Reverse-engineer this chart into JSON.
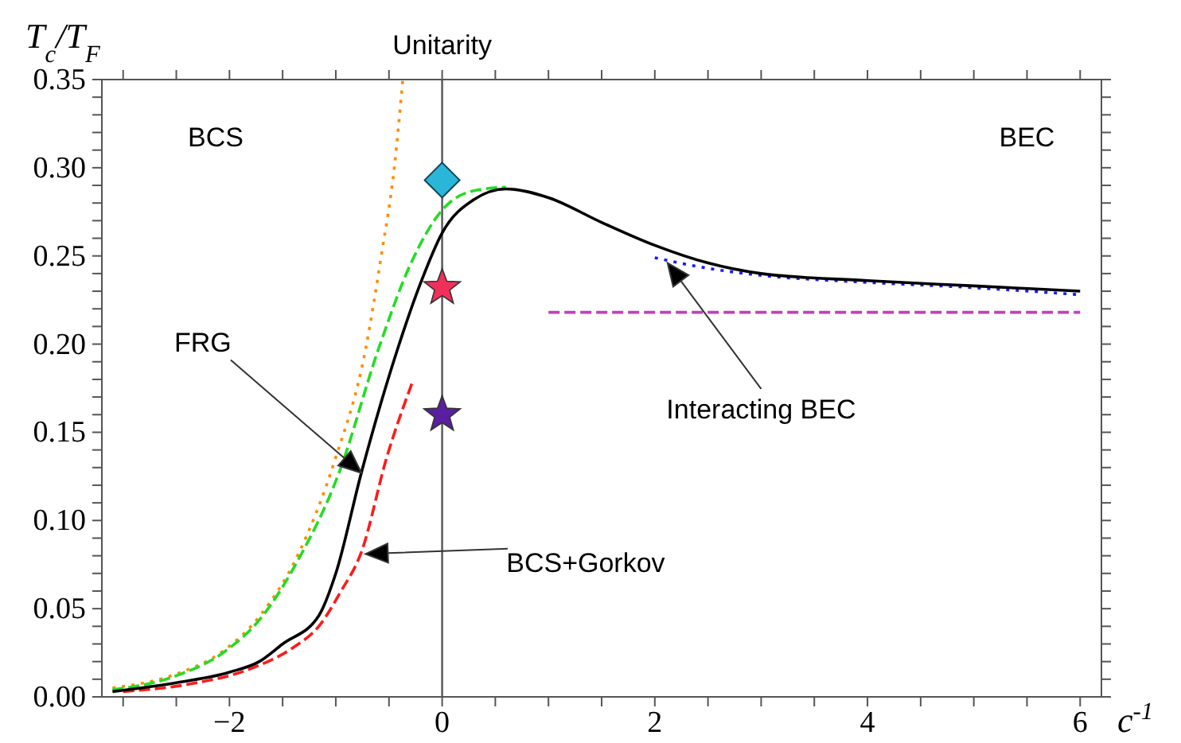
{
  "chart_data": {
    "type": "line",
    "ylabel": "T$_{c}$/T$_{F}$",
    "xlabel": "c$^{-1}$",
    "xlim": [
      -3.2,
      6.2
    ],
    "xticks": [
      {
        "value": -3,
        "label": null
      },
      {
        "value": -2.5,
        "label": null
      },
      {
        "value": -2,
        "label": "−2"
      },
      {
        "value": -1.5,
        "label": null
      },
      {
        "value": -1,
        "label": null
      },
      {
        "value": -0.5,
        "label": null
      },
      0,
      {
        "value": 0.5,
        "label": null
      },
      {
        "value": 1,
        "label": null
      },
      {
        "value": 1.5,
        "label": null
      },
      2,
      {
        "value": 2.5,
        "label": null
      },
      {
        "value": 3,
        "label": null
      },
      {
        "value": 3.5,
        "label": null
      },
      4,
      {
        "value": 4.5,
        "label": null
      },
      {
        "value": 5,
        "label": null
      },
      {
        "value": 5.5,
        "label": null
      },
      6
    ],
    "ylim": [
      0,
      0.35
    ],
    "yticks": [
      {
        "value": 0,
        "label": "0.00"
      },
      {
        "value": 0.01,
        "label": null
      },
      {
        "value": 0.02,
        "label": null
      },
      {
        "value": 0.03,
        "label": null
      },
      {
        "value": 0.04,
        "label": null
      },
      {
        "value": 0.05,
        "label": "0.05"
      },
      {
        "value": 0.06,
        "label": null
      },
      {
        "value": 0.07,
        "label": null
      },
      {
        "value": 0.08,
        "label": null
      },
      {
        "value": 0.09,
        "label": null
      },
      {
        "value": 0.1,
        "label": "0.10"
      },
      {
        "value": 0.11,
        "label": null
      },
      {
        "value": 0.12,
        "label": null
      },
      {
        "value": 0.13,
        "label": null
      },
      {
        "value": 0.14,
        "label": null
      },
      {
        "value": 0.15,
        "label": "0.15"
      },
      {
        "value": 0.16,
        "label": null
      },
      {
        "value": 0.17,
        "label": null
      },
      {
        "value": 0.18,
        "label": null
      },
      {
        "value": 0.19,
        "label": null
      },
      {
        "value": 0.2,
        "label": "0.20"
      },
      {
        "value": 0.21,
        "label": null
      },
      {
        "value": 0.22,
        "label": null
      },
      {
        "value": 0.23,
        "label": null
      },
      {
        "value": 0.24,
        "label": null
      },
      {
        "value": 0.25,
        "label": "0.25"
      },
      {
        "value": 0.26,
        "label": null
      },
      {
        "value": 0.27,
        "label": null
      },
      {
        "value": 0.28,
        "label": null
      },
      {
        "value": 0.29,
        "label": null
      },
      {
        "value": 0.3,
        "label": "0.30"
      },
      {
        "value": 0.31,
        "label": null
      },
      {
        "value": 0.32,
        "label": null
      },
      {
        "value": 0.33,
        "label": null
      },
      {
        "value": 0.34,
        "label": null
      },
      {
        "value": 0.35,
        "label": "0.35"
      }
    ],
    "grid": false,
    "legend": false,
    "marker": "none",
    "series": [
      {
        "color": "#ff8c00",
        "line_style": "dotted",
        "x": [
          -3.1,
          -2.5,
          -2.06,
          -1.7,
          -1.36,
          -1.01,
          -0.72,
          -0.57,
          -0.45,
          -0.37
        ],
        "values": [
          0.005,
          0.013,
          0.026,
          0.047,
          0.08,
          0.134,
          0.197,
          0.251,
          0.3,
          0.35
        ]
      },
      {
        "color": "#22dd22",
        "line_style": "dashed",
        "x": [
          -3.1,
          -2.5,
          -2.06,
          -1.7,
          -1.36,
          -0.97,
          -0.6,
          -0.3,
          0,
          0.3,
          0.6
        ],
        "values": [
          0.004,
          0.012,
          0.025,
          0.045,
          0.077,
          0.127,
          0.197,
          0.245,
          0.276,
          0.287,
          0.289
        ]
      },
      {
        "color": "#ff1a1a",
        "line_style": "dashed",
        "x": [
          -3,
          -2.4,
          -1.8,
          -1.4,
          -1.16,
          -0.95,
          -0.76,
          -0.52,
          -0.27
        ],
        "values": [
          0.003,
          0.007,
          0.016,
          0.028,
          0.04,
          0.06,
          0.082,
          0.136,
          0.18
        ]
      },
      {
        "color": "#1a1aff",
        "line_style": "dotted",
        "x": [
          2,
          2.5,
          3,
          4,
          5,
          6
        ],
        "values": [
          0.249,
          0.243,
          0.239,
          0.235,
          0.232,
          0.228
        ]
      },
      {
        "color": "#c040c0",
        "line_style": "dashed",
        "x": [
          1,
          6
        ],
        "values": [
          0.218,
          0.218
        ]
      },
      {
        "color": "#000000",
        "line_style": "solid",
        "x": [
          -3.1,
          -2.5,
          -2,
          -1.72,
          -1.5,
          -1.16,
          -1,
          -0.76,
          -0.42,
          -0.2,
          0,
          0.3,
          0.6,
          1,
          1.5,
          2,
          2.5,
          3,
          4,
          5,
          6
        ],
        "values": [
          0.003,
          0.008,
          0.014,
          0.02,
          0.03,
          0.046,
          0.07,
          0.127,
          0.197,
          0.235,
          0.263,
          0.282,
          0.288,
          0.283,
          0.269,
          0.256,
          0.246,
          0.24,
          0.236,
          0.233,
          0.23
        ]
      },
      {
        "type": "scatter",
        "marker": "diamond",
        "color": "#29b6d8",
        "x": [
          0
        ],
        "values": [
          0.293
        ]
      },
      {
        "type": "scatter",
        "marker": "star",
        "color": "#f0305a",
        "x": [
          0
        ],
        "values": [
          0.232
        ]
      },
      {
        "type": "scatter",
        "marker": "star",
        "color": "#5a1fa0",
        "x": [
          0
        ],
        "values": [
          0.16
        ]
      }
    ],
    "ref_lines": [
      {
        "axis": "x",
        "value": 0,
        "label": "Unitarity",
        "color": "#555555"
      }
    ],
    "annotations": [
      "BCS",
      "BEC",
      "FRG",
      "BCS+Gorkov",
      "Interacting BEC"
    ]
  }
}
